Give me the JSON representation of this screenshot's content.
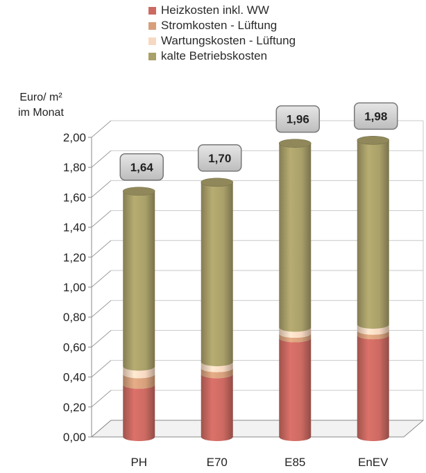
{
  "chart_data": {
    "type": "bar",
    "stacked": true,
    "three_d": true,
    "categories": [
      "PH",
      "E70",
      "E85",
      "EnEV"
    ],
    "series": [
      {
        "name": "Heizkosten inkl. WW",
        "color": "#cc6a62",
        "values": [
          0.35,
          0.42,
          0.66,
          0.68
        ]
      },
      {
        "name": "Stromkosten - Lüftung",
        "color": "#d6a07c",
        "values": [
          0.07,
          0.04,
          0.03,
          0.03
        ]
      },
      {
        "name": "Wartungskosten - Lüftung",
        "color": "#f7d9c2",
        "values": [
          0.05,
          0.04,
          0.04,
          0.04
        ]
      },
      {
        "name": "kalte Betriebskosten",
        "color": "#a9a06a",
        "values": [
          1.17,
          1.2,
          1.23,
          1.23
        ]
      }
    ],
    "totals": [
      "1,64",
      "1,70",
      "1,96",
      "1,98"
    ],
    "ylabel_line1": "Euro/ m²",
    "ylabel_line2": "im Monat",
    "ylim": [
      0,
      2.0
    ],
    "yticks": [
      "0,00",
      "0,20",
      "0,40",
      "0,60",
      "0,80",
      "1,00",
      "1,20",
      "1,40",
      "1,60",
      "1,80",
      "2,00"
    ],
    "grid": true,
    "legend_position": "top"
  }
}
